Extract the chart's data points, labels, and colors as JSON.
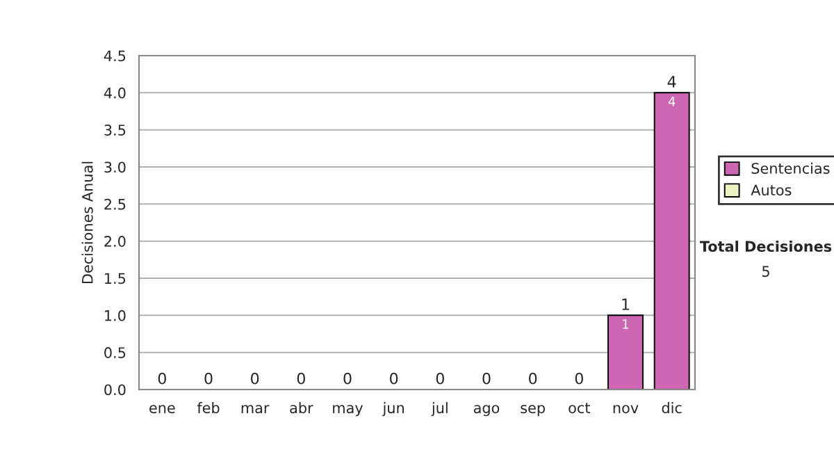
{
  "chart_data": {
    "type": "bar",
    "stacked": true,
    "ylabel": "Decisiones Anual",
    "categories": [
      "ene",
      "feb",
      "mar",
      "abr",
      "may",
      "jun",
      "jul",
      "ago",
      "sep",
      "oct",
      "nov",
      "dic"
    ],
    "series": [
      {
        "name": "Sentencias",
        "color": "#cc66b3",
        "values": [
          0,
          0,
          0,
          0,
          0,
          0,
          0,
          0,
          0,
          0,
          1,
          4
        ],
        "value_labels": [
          null,
          null,
          null,
          null,
          null,
          null,
          null,
          null,
          null,
          null,
          "1",
          "4"
        ]
      },
      {
        "name": "Autos",
        "color": "#eef2c0",
        "values": [
          0,
          0,
          0,
          0,
          0,
          0,
          0,
          0,
          0,
          0,
          0,
          0
        ]
      }
    ],
    "totals": [
      "0",
      "0",
      "0",
      "0",
      "0",
      "0",
      "0",
      "0",
      "0",
      "0",
      "1",
      "4"
    ],
    "ylim": [
      0,
      4.5
    ],
    "yticks": [
      {
        "value": 0,
        "label": "0.0"
      },
      {
        "value": 0.5,
        "label": "0.5"
      },
      {
        "value": 1,
        "label": "1.0"
      },
      {
        "value": 1.5,
        "label": "1.5"
      },
      {
        "value": 2,
        "label": "2.0"
      },
      {
        "value": 2.5,
        "label": "2.5"
      },
      {
        "value": 3,
        "label": "3.0"
      },
      {
        "value": 3.5,
        "label": "3.5"
      },
      {
        "value": 4,
        "label": "4.0"
      },
      {
        "value": 4.5,
        "label": "4.5"
      }
    ],
    "grid": "y",
    "legend": "right",
    "annotations": [
      "Total Decisiones",
      "5"
    ]
  }
}
